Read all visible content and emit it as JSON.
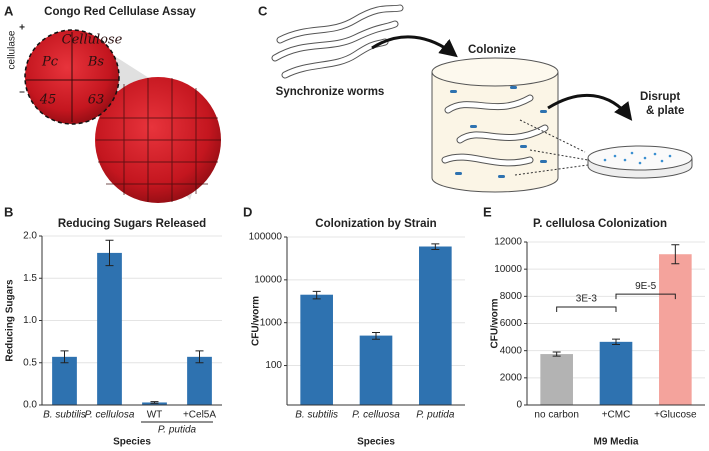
{
  "panels": {
    "A": {
      "label": "A",
      "title": "Congo Red Cellulase Assay",
      "axis_label": "cellulase",
      "plus": "+",
      "minus": "–",
      "plate_labels": [
        "Cellulose",
        "Pc",
        "Bs",
        "45",
        "63"
      ]
    },
    "C": {
      "label": "C",
      "synchronize": "Synchronize worms",
      "colonize": "Colonize",
      "disrupt": [
        "Disrupt",
        "& plate"
      ]
    }
  },
  "chart_data": [
    {
      "panel": "B",
      "type": "bar",
      "title": "Reducing Sugars Released",
      "y_label": "Reducing Sugars",
      "x_label": "Species",
      "categories": [
        "B. subtilis",
        "P. cellulosa",
        "WT",
        "+Cel5A"
      ],
      "group_label": "P. putida",
      "values": [
        0.57,
        1.8,
        0.03,
        0.57
      ],
      "errors": [
        0.07,
        0.15,
        0.01,
        0.07
      ],
      "color": "#2e72b0",
      "ylim": [
        0,
        2
      ],
      "yticks": [
        {
          "value": 0,
          "label": "0.0"
        },
        {
          "value": 0.5,
          "label": "0.5"
        },
        {
          "value": 1,
          "label": "1.0"
        },
        {
          "value": 1.5,
          "label": "1.5"
        },
        {
          "value": 2,
          "label": "2.0"
        }
      ],
      "grid": true
    },
    {
      "panel": "D",
      "type": "bar",
      "title": "Colonization by Strain",
      "y_label": "CFU/worm",
      "x_label": "Species",
      "categories": [
        "B. subtilis",
        "P. celluosa",
        "P. putida"
      ],
      "values": [
        4500,
        500,
        60000
      ],
      "errors": [
        900,
        90,
        9000
      ],
      "color": "#2e72b0",
      "log_scale": true,
      "ylim": [
        12,
        100000
      ],
      "yticks": [
        100,
        1000,
        10000,
        100000
      ],
      "grid": true
    },
    {
      "panel": "E",
      "type": "bar",
      "title": "P. cellulosa Colonization",
      "y_label": "CFU/worm",
      "x_label": "M9 Media",
      "categories": [
        "no carbon",
        "+CMC",
        "+Glucose"
      ],
      "values": [
        3750,
        4650,
        11100
      ],
      "errors": [
        150,
        200,
        700
      ],
      "colors": [
        "#b3b3b3",
        "#2e72b0",
        "#f4a39c"
      ],
      "ylim": [
        0,
        12000
      ],
      "yticks": [
        0,
        2000,
        4000,
        6000,
        8000,
        10000,
        12000
      ],
      "grid": true,
      "annotations": [
        "3E-3",
        "9E-5"
      ]
    }
  ]
}
